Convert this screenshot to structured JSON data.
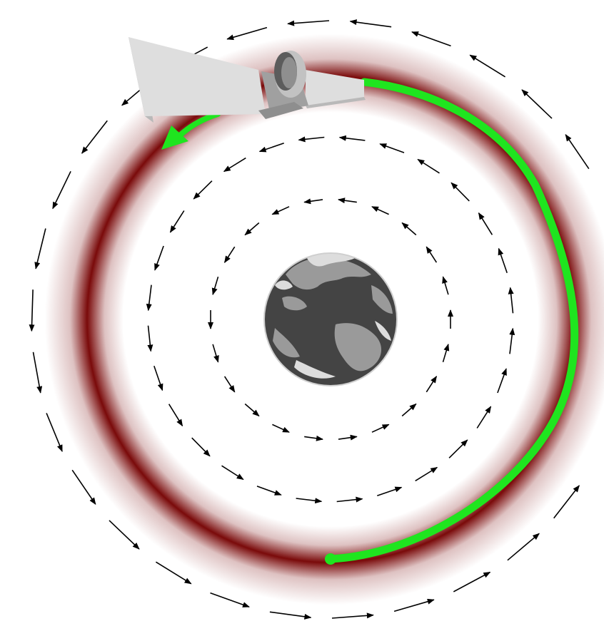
{
  "diagram": {
    "caption": "",
    "palette": {
      "background": "#ffffff",
      "ring": "#7a0a0a",
      "trajectory": "#1fe51f",
      "arrow": "#000000",
      "earth_ocean": "#444444",
      "earth_land": "#9a9a9a",
      "earth_outline": "#dddddd",
      "satellite_panel": "#dcdcdc",
      "satellite_body": "#8a8a8a"
    },
    "field": {
      "rotation": "counter-clockwise",
      "rings": [
        {
          "name": "inner",
          "arrow_count": 22
        },
        {
          "name": "middle",
          "arrow_count": 28
        },
        {
          "name": "outer",
          "arrow_count": 30
        }
      ]
    },
    "icons": {
      "earth": "earth-icon",
      "satellite": "satellite-icon"
    }
  }
}
